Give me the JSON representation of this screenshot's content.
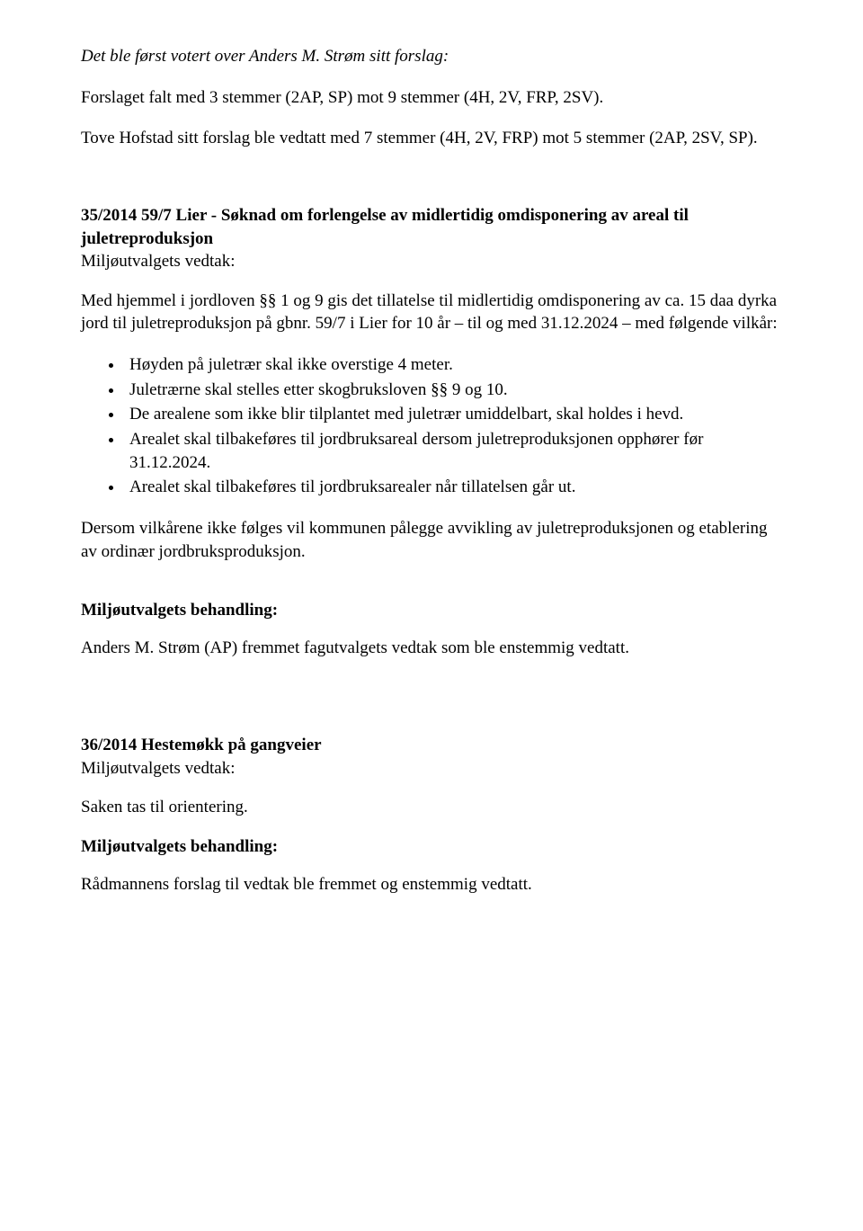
{
  "doc": {
    "intro_italic": "Det ble først votert over Anders M. Strøm sitt forslag:",
    "para1": "Forslaget falt med 3 stemmer (2AP, SP) mot 9 stemmer (4H, 2V, FRP, 2SV).",
    "para2": "Tove Hofstad sitt forslag ble vedtatt med 7 stemmer (4H, 2V, FRP) mot 5 stemmer (2AP, 2SV, SP).",
    "case35": {
      "title": "35/2014 59/7 Lier - Søknad om forlengelse av midlertidig omdisponering av areal til juletreproduksjon",
      "subtitle": "Miljøutvalgets vedtak:",
      "body1": "Med hjemmel i jordloven §§ 1 og 9 gis det tillatelse til midlertidig omdisponering av ca. 15 daa dyrka jord til juletreproduksjon på gbnr. 59/7 i Lier for 10 år – til og med 31.12.2024 – med følgende vilkår:",
      "bullets": [
        "Høyden på juletrær skal ikke overstige 4 meter.",
        "Juletrærne skal stelles etter skogbruksloven §§ 9 og 10.",
        "De arealene som ikke blir tilplantet med juletrær umiddelbart, skal holdes i hevd.",
        "Arealet skal tilbakeføres til jordbruksareal dersom juletreproduksjonen opphører før 31.12.2024.",
        "Arealet skal tilbakeføres til jordbruksarealer når tillatelsen går ut."
      ],
      "body2": "Dersom vilkårene ikke følges vil kommunen pålegge avvikling av juletreproduksjonen og etablering av ordinær jordbruksproduksjon.",
      "behandling_label": "Miljøutvalgets behandling:",
      "behandling_text": "Anders M. Strøm (AP) fremmet fagutvalgets vedtak som ble enstemmig vedtatt."
    },
    "case36": {
      "title": "36/2014 Hestemøkk på gangveier",
      "subtitle": "Miljøutvalgets vedtak:",
      "body1": "Saken tas til orientering.",
      "behandling_label": "Miljøutvalgets behandling:",
      "behandling_text": "Rådmannens forslag til vedtak ble fremmet og enstemmig vedtatt."
    }
  }
}
